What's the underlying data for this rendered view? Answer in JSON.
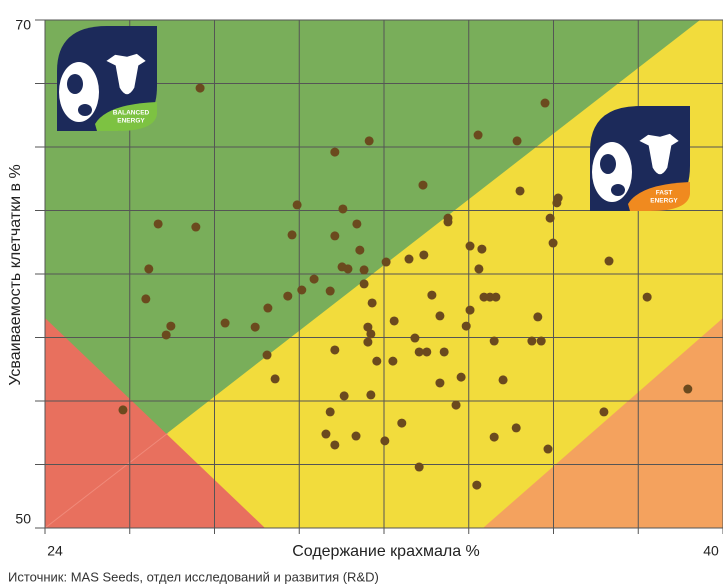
{
  "chart_data": {
    "type": "scatter",
    "x_label": "Содержание крахмала %",
    "y_label": "Усваиваемость клетчатки в %",
    "source": "Источник: MAS Seeds, отдел исследований и развития (R&D)",
    "badges": [
      [
        "BALANCED",
        "ENERGY"
      ],
      [
        "FAST",
        "ENERGY"
      ]
    ],
    "color": "#6b4a1e",
    "grid": true,
    "xlim": [
      24,
      40
    ],
    "ylim": [
      50,
      70
    ],
    "xticks": [
      24,
      {
        "value": 26,
        "label": null
      },
      {
        "value": 28,
        "label": null
      },
      {
        "value": 30,
        "label": null
      },
      {
        "value": 32,
        "label": null
      },
      {
        "value": 34,
        "label": null
      },
      {
        "value": 36,
        "label": null
      },
      {
        "value": 38,
        "label": null
      },
      40
    ],
    "yticks": [
      50,
      {
        "value": 52.5,
        "label": null
      },
      {
        "value": 55,
        "label": null
      },
      {
        "value": 57.5,
        "label": null
      },
      {
        "value": 60,
        "label": null
      },
      {
        "value": 62.5,
        "label": null
      },
      {
        "value": 65,
        "label": null
      },
      {
        "value": 67.5,
        "label": null
      },
      70
    ],
    "x": [
      27.66,
      35.8,
      34.22,
      35.14,
      31.65,
      30.84,
      32.92,
      35.21,
      36.11,
      36.08,
      29.95,
      31.03,
      33.51,
      35.92,
      33.51,
      31.36,
      26.67,
      27.56,
      29.83,
      30.84,
      34.03,
      34.31,
      35.99,
      31.43,
      32.94,
      37.31,
      26.45,
      31.01,
      31.15,
      31.53,
      32.05,
      32.59,
      34.24,
      30.35,
      30.06,
      30.73,
      31.53,
      29.73,
      33.13,
      34.36,
      34.5,
      34.64,
      26.38,
      38.21,
      31.72,
      29.26,
      34.03,
      33.32,
      35.63,
      28.25,
      32.24,
      26.97,
      28.96,
      31.62,
      33.94,
      26.86,
      31.69,
      32.73,
      31.62,
      34.6,
      35.49,
      35.71,
      30.84,
      32.83,
      33.01,
      33.42,
      29.24,
      31.83,
      32.21,
      33.82,
      29.43,
      33.32,
      34.81,
      31.69,
      31.06,
      39.17,
      33.7,
      25.84,
      30.73,
      37.19,
      32.42,
      35.12,
      30.63,
      31.34,
      34.6,
      32.02,
      30.84,
      35.87,
      32.83,
      34.19
    ],
    "y": [
      67.32,
      66.73,
      65.47,
      65.24,
      65.24,
      64.8,
      63.5,
      63.27,
      62.99,
      62.8,
      62.72,
      62.56,
      62.2,
      62.2,
      62.05,
      61.97,
      61.97,
      61.85,
      61.54,
      61.5,
      61.1,
      60.98,
      61.22,
      60.94,
      60.75,
      60.51,
      60.2,
      60.28,
      60.2,
      60.16,
      60.47,
      60.59,
      60.2,
      59.8,
      59.37,
      59.33,
      59.61,
      59.13,
      59.17,
      59.09,
      59.09,
      59.09,
      59.02,
      59.09,
      58.86,
      58.66,
      58.58,
      58.35,
      58.31,
      58.07,
      58.15,
      57.95,
      57.91,
      57.91,
      57.95,
      57.6,
      57.64,
      57.48,
      57.32,
      57.36,
      57.36,
      57.36,
      57.01,
      56.93,
      56.93,
      56.93,
      56.81,
      56.57,
      56.57,
      55.94,
      55.87,
      55.71,
      55.83,
      55.24,
      55.2,
      55.47,
      54.84,
      54.65,
      54.57,
      54.57,
      54.13,
      53.94,
      53.7,
      53.62,
      53.58,
      53.43,
      53.27,
      53.11,
      52.4,
      51.69
    ]
  }
}
